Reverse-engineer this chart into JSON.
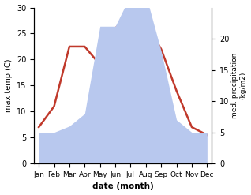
{
  "months": [
    "Jan",
    "Feb",
    "Mar",
    "Apr",
    "May",
    "Jun",
    "Jul",
    "Aug",
    "Sep",
    "Oct",
    "Nov",
    "Dec"
  ],
  "temperature": [
    7,
    11,
    22.5,
    22.5,
    19,
    26,
    29,
    27,
    22,
    14,
    7,
    5.5
  ],
  "precipitation": [
    5,
    5,
    6,
    8,
    22,
    22,
    27,
    27,
    18,
    7,
    5,
    5
  ],
  "temp_color": "#c0392b",
  "precip_color": "#b8c8ee",
  "title": "",
  "xlabel": "date (month)",
  "ylabel_left": "max temp (C)",
  "ylabel_right": "med. precipitation\n(kg/m2)",
  "ylim_left": [
    0,
    30
  ],
  "ylim_right": [
    0,
    25
  ],
  "left_yticks": [
    0,
    5,
    10,
    15,
    20,
    25,
    30
  ],
  "right_yticks": [
    0,
    5,
    10,
    15,
    20
  ],
  "bg_color": "#ffffff"
}
